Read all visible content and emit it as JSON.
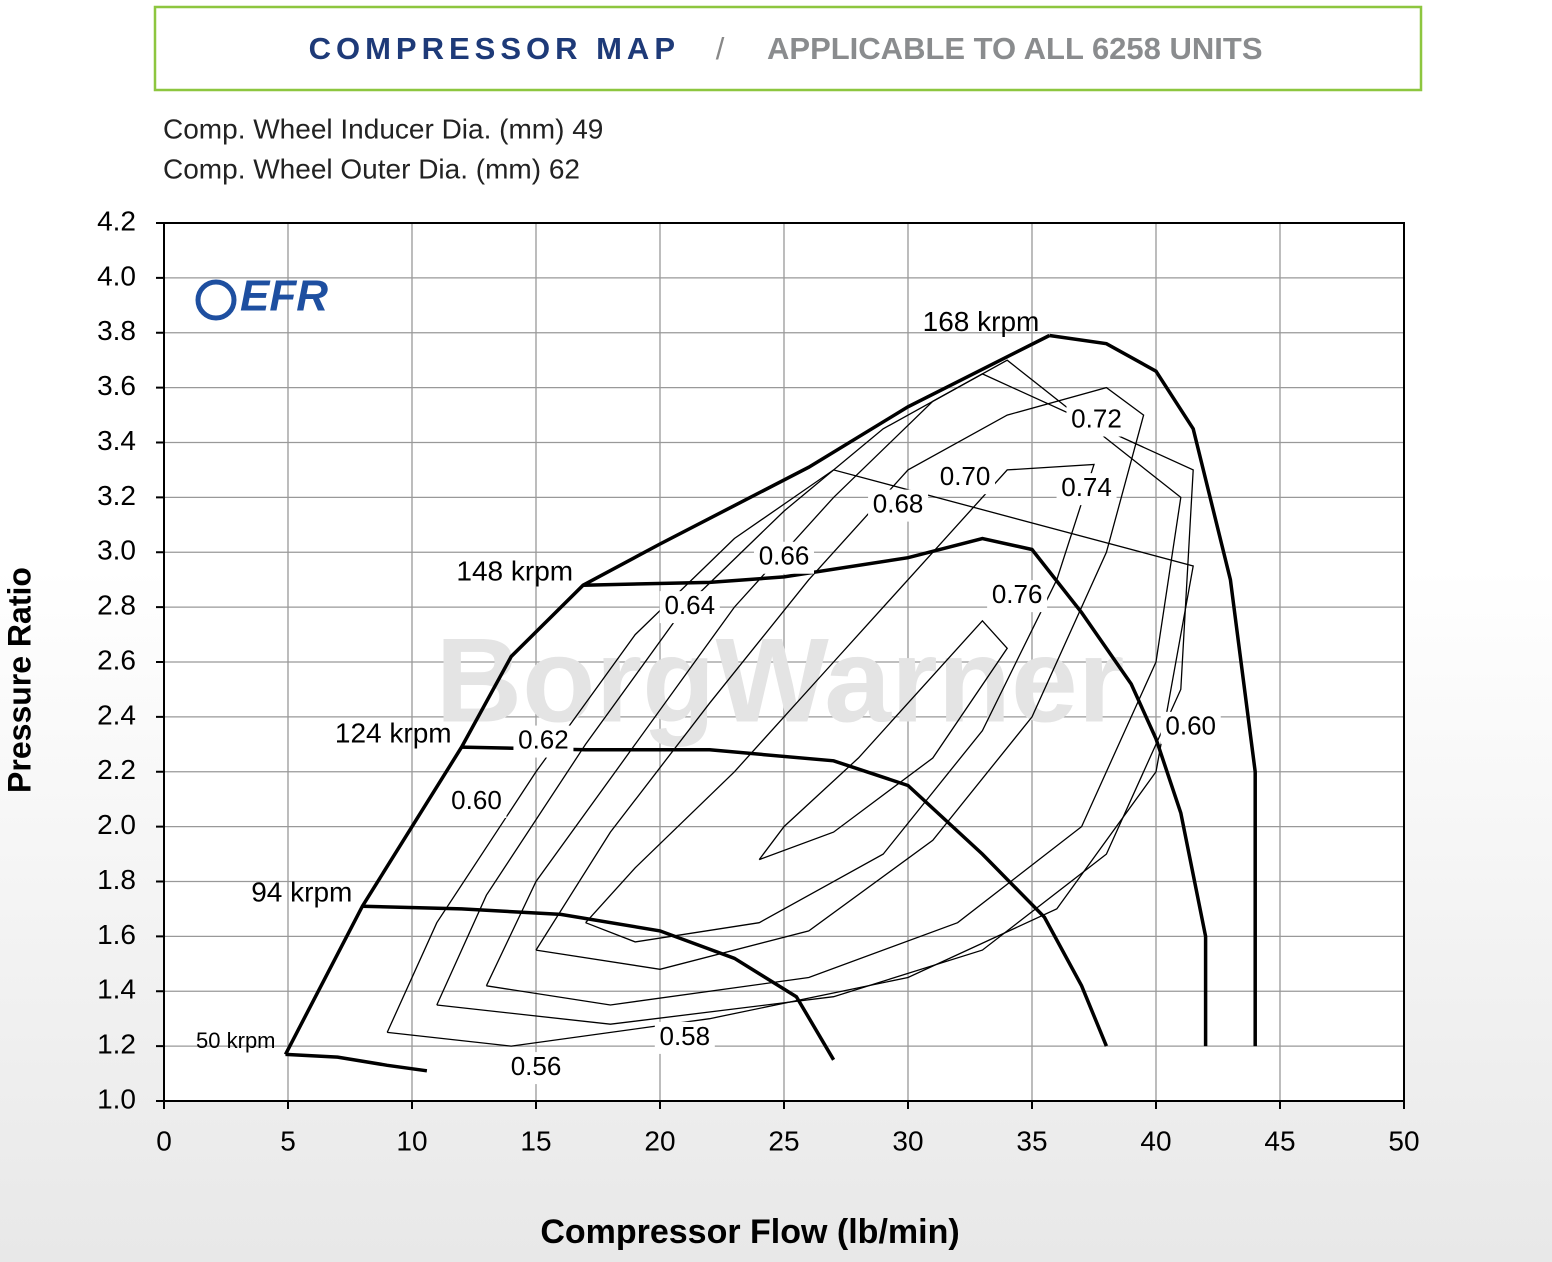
{
  "header": {
    "title": "COMPRESSOR MAP",
    "separator": "/",
    "subtitle": "APPLICABLE TO ALL 6258  UNITS"
  },
  "specs": [
    "Comp. Wheel Inducer Dia. (mm) 49",
    "Comp. Wheel Outer Dia. (mm) 62"
  ],
  "chart_data": {
    "type": "line",
    "x_label": "Compressor Flow (lb/min)",
    "y_label": "Pressure Ratio",
    "logo": "EFR",
    "watermark": "BorgWarner",
    "xlim": [
      0,
      50
    ],
    "xticks": [
      0,
      5,
      10,
      15,
      20,
      25,
      30,
      35,
      40,
      45,
      50
    ],
    "ylim": [
      1.0,
      4.2
    ],
    "yticks": [
      {
        "value": 1.0,
        "label": "1.0"
      },
      1.2,
      1.4,
      1.6,
      1.8,
      {
        "value": 2.0,
        "label": "2.0"
      },
      2.2,
      2.4,
      2.6,
      2.8,
      {
        "value": 3.0,
        "label": "3.0"
      },
      3.2,
      3.4,
      3.6,
      3.8,
      {
        "value": 4.0,
        "label": "4.0"
      },
      4.2
    ],
    "grid": true,
    "color": "#000000",
    "series": [
      {
        "name": "50 krpm",
        "x": [
          4.9,
          7,
          9,
          10.6
        ],
        "y": [
          1.17,
          1.16,
          1.13,
          1.11
        ]
      },
      {
        "name": "94 krpm",
        "x": [
          8,
          12,
          16,
          20,
          23,
          25.5,
          27
        ],
        "y": [
          1.71,
          1.7,
          1.68,
          1.62,
          1.52,
          1.38,
          1.15
        ]
      },
      {
        "name": "124 krpm",
        "x": [
          12,
          17,
          22,
          27,
          30,
          33,
          35.5,
          37,
          38
        ],
        "y": [
          2.29,
          2.28,
          2.28,
          2.24,
          2.15,
          1.9,
          1.67,
          1.42,
          1.2
        ]
      },
      {
        "name": "148 krpm",
        "x": [
          16.9,
          22,
          25,
          30,
          33,
          35,
          37,
          39,
          40,
          41,
          42,
          42
        ],
        "y": [
          2.88,
          2.89,
          2.91,
          2.98,
          3.05,
          3.01,
          2.78,
          2.52,
          2.32,
          2.05,
          1.6,
          1.2
        ]
      },
      {
        "name": "168 krpm",
        "x": [
          35.7,
          38,
          40,
          41.5,
          43,
          44,
          44
        ],
        "y": [
          3.79,
          3.76,
          3.66,
          3.45,
          2.9,
          2.2,
          1.2
        ]
      }
    ],
    "surge": {
      "x": [
        4.9,
        8,
        12,
        14,
        16.9,
        20,
        26,
        30,
        35.7
      ],
      "y": [
        1.17,
        1.71,
        2.29,
        2.62,
        2.88,
        3.03,
        3.31,
        3.53,
        3.79
      ]
    },
    "contours": [
      {
        "x": [
          24,
          25,
          28,
          31,
          33,
          34,
          31,
          27,
          24
        ],
        "y": [
          1.88,
          2.0,
          2.25,
          2.55,
          2.75,
          2.65,
          2.25,
          1.98,
          1.88
        ]
      },
      {
        "x": [
          17,
          19,
          23,
          27,
          31,
          34,
          37.5,
          36,
          33,
          29,
          24,
          19,
          17
        ],
        "y": [
          1.65,
          1.85,
          2.2,
          2.6,
          3.0,
          3.3,
          3.32,
          2.9,
          2.35,
          1.9,
          1.65,
          1.58,
          1.65
        ]
      },
      {
        "x": [
          15,
          18,
          22,
          26,
          30,
          34,
          38,
          39.5,
          38,
          35,
          31,
          26,
          20,
          15
        ],
        "y": [
          1.55,
          1.98,
          2.45,
          2.9,
          3.3,
          3.5,
          3.6,
          3.5,
          3.0,
          2.4,
          1.95,
          1.62,
          1.48,
          1.55
        ]
      },
      {
        "x": [
          13,
          15,
          19,
          23,
          27,
          31,
          34,
          41,
          40,
          37,
          32,
          26,
          18,
          13
        ],
        "y": [
          1.42,
          1.8,
          2.3,
          2.8,
          3.2,
          3.55,
          3.7,
          3.2,
          2.6,
          2.0,
          1.65,
          1.45,
          1.35,
          1.42
        ]
      },
      {
        "x": [
          11,
          13,
          17,
          21,
          25,
          29,
          33,
          41.5,
          41,
          38,
          33,
          27,
          18,
          11
        ],
        "y": [
          1.35,
          1.75,
          2.3,
          2.8,
          3.15,
          3.45,
          3.65,
          3.3,
          2.5,
          1.9,
          1.55,
          1.38,
          1.28,
          1.35
        ]
      },
      {
        "x": [
          9,
          11,
          15,
          19,
          23,
          27,
          41.5,
          40,
          36,
          30,
          22,
          14,
          9
        ],
        "y": [
          1.25,
          1.65,
          2.2,
          2.7,
          3.05,
          3.3,
          2.95,
          2.2,
          1.7,
          1.45,
          1.3,
          1.2,
          1.25
        ]
      }
    ],
    "efficiency_labels": [
      {
        "text": "0.56",
        "x": 15,
        "y": 1.12
      },
      {
        "text": "0.58",
        "x": 21,
        "y": 1.23
      },
      {
        "text": "0.60",
        "x": 12.6,
        "y": 2.09
      },
      {
        "text": "0.62",
        "x": 15.3,
        "y": 2.31
      },
      {
        "text": "0.64",
        "x": 21.2,
        "y": 2.8
      },
      {
        "text": "0.66",
        "x": 25,
        "y": 2.98
      },
      {
        "text": "0.68",
        "x": 29.6,
        "y": 3.17
      },
      {
        "text": "0.70",
        "x": 32.3,
        "y": 3.27
      },
      {
        "text": "0.72",
        "x": 37.6,
        "y": 3.48
      },
      {
        "text": "0.74",
        "x": 37.2,
        "y": 3.23
      },
      {
        "text": "0.76",
        "x": 34.4,
        "y": 2.84
      },
      {
        "text": "0.60",
        "x": 41.4,
        "y": 2.36
      }
    ]
  }
}
